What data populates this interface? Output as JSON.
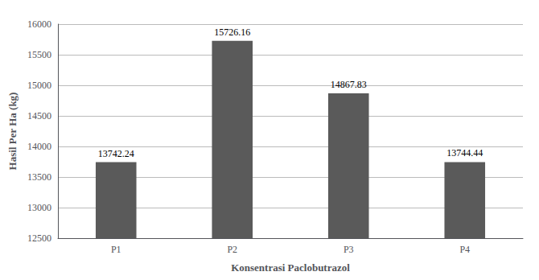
{
  "chart_data": {
    "type": "bar",
    "xlabel": "Konsentrasi Paclobutrazol",
    "ylabel": "Hasil Per Ha (kg)",
    "categories": [
      "P1",
      "P2",
      "P3",
      "P4"
    ],
    "values": [
      13742.24,
      15726.16,
      14867.83,
      13744.44
    ],
    "color": "#5a5a5a",
    "ylim": [
      12500,
      16000
    ],
    "yticks": [
      12500,
      13000,
      13500,
      14000,
      14500,
      15000,
      15500,
      16000
    ],
    "grid": true,
    "data_labels": true
  }
}
